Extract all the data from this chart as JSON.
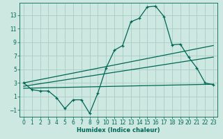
{
  "xlabel": "Humidex (Indice chaleur)",
  "bg_color": "#cce8e0",
  "grid_color": "#aaccc4",
  "line_color": "#006655",
  "x_ticks": [
    0,
    1,
    2,
    3,
    4,
    5,
    6,
    7,
    8,
    9,
    10,
    11,
    12,
    13,
    14,
    15,
    16,
    17,
    18,
    19,
    20,
    21,
    22,
    23
  ],
  "y_ticks": [
    -1,
    1,
    3,
    5,
    7,
    9,
    11,
    13
  ],
  "ylim": [
    -2.0,
    14.8
  ],
  "xlim": [
    -0.5,
    23.5
  ],
  "line1_x": [
    0,
    1,
    2,
    3,
    4,
    5,
    6,
    7,
    8,
    9,
    10,
    11,
    12,
    13,
    14,
    15,
    16,
    17,
    18,
    19,
    20,
    21,
    22,
    23
  ],
  "line1_y": [
    3.0,
    2.0,
    1.8,
    1.8,
    0.8,
    -0.8,
    0.5,
    0.5,
    -1.5,
    1.5,
    5.2,
    7.8,
    8.5,
    12.0,
    12.5,
    14.2,
    14.3,
    12.8,
    8.6,
    8.7,
    6.8,
    5.2,
    3.0,
    2.7
  ],
  "line2_x": [
    0,
    23
  ],
  "line2_y": [
    3.0,
    8.5
  ],
  "line3_x": [
    0,
    23
  ],
  "line3_y": [
    2.5,
    6.8
  ],
  "line4_x": [
    0,
    23
  ],
  "line4_y": [
    2.2,
    2.8
  ]
}
